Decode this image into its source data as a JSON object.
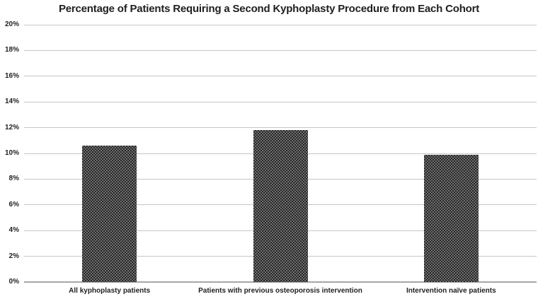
{
  "chart_data": {
    "type": "bar",
    "title": "Percentage of Patients Requiring a Second Kyphoplasty Procedure from Each Cohort",
    "categories": [
      "All kyphoplasty patients",
      "Patients with previous osteoporosis intervention",
      "Intervention naïve patients"
    ],
    "values": [
      10.6,
      11.8,
      9.9
    ],
    "xlabel": "",
    "ylabel": "",
    "ylim": [
      0,
      20
    ],
    "ytick_step": 2,
    "ytick_labels": [
      "0%",
      "2%",
      "4%",
      "6%",
      "8%",
      "10%",
      "12%",
      "14%",
      "16%",
      "18%",
      "20%"
    ],
    "grid": true,
    "legend": false,
    "bar_pattern": "checkerboard",
    "colors": {
      "background": "#ffffff",
      "title_text": "#1f1f1f",
      "tick_text": "#1f1f1f",
      "gridline": "#c6c6c6",
      "axis_line": "#a6a6a6",
      "bar_dark": "#282828",
      "bar_light": "#6e6e6e"
    }
  }
}
